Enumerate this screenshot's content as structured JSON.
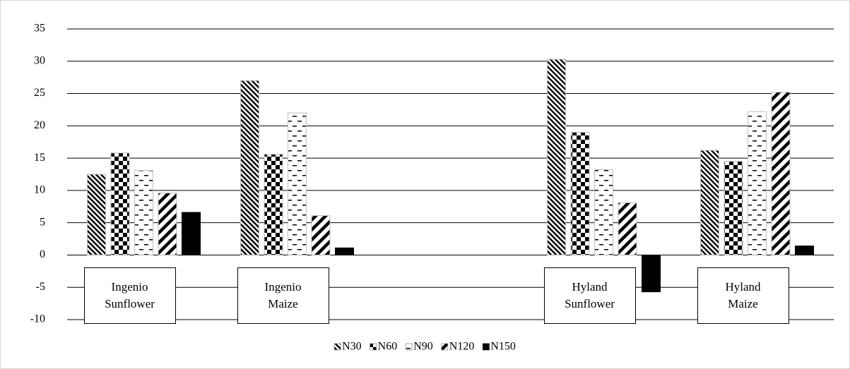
{
  "chart_data": {
    "type": "bar",
    "categories": [
      "Ingenio Sunflower",
      "Ingenio Maize",
      null,
      "Hyland Sunflower",
      "Hyland Maize"
    ],
    "series": [
      {
        "name": "N30",
        "color": "#000000",
        "pattern": "diagonal-back",
        "values": [
          12.5,
          27.0,
          null,
          30.3,
          16.2
        ]
      },
      {
        "name": "N60",
        "color": "#000000",
        "pattern": "checker",
        "values": [
          15.8,
          15.6,
          null,
          19.0,
          14.5
        ]
      },
      {
        "name": "N90",
        "color": "#000000",
        "pattern": "dashes",
        "values": [
          13.1,
          22.0,
          null,
          13.2,
          22.2
        ]
      },
      {
        "name": "N120",
        "color": "#000000",
        "pattern": "diagonal-wide",
        "values": [
          9.6,
          6.1,
          null,
          8.1,
          25.2
        ]
      },
      {
        "name": "N150",
        "color": "#000000",
        "pattern": "solid",
        "values": [
          6.6,
          1.1,
          null,
          -5.7,
          1.4
        ]
      }
    ],
    "ylim": [
      -10,
      35
    ],
    "yticks": [
      -10,
      -5,
      0,
      5,
      10,
      15,
      20,
      25,
      30,
      35
    ],
    "grid": true,
    "legend": "bottom"
  }
}
